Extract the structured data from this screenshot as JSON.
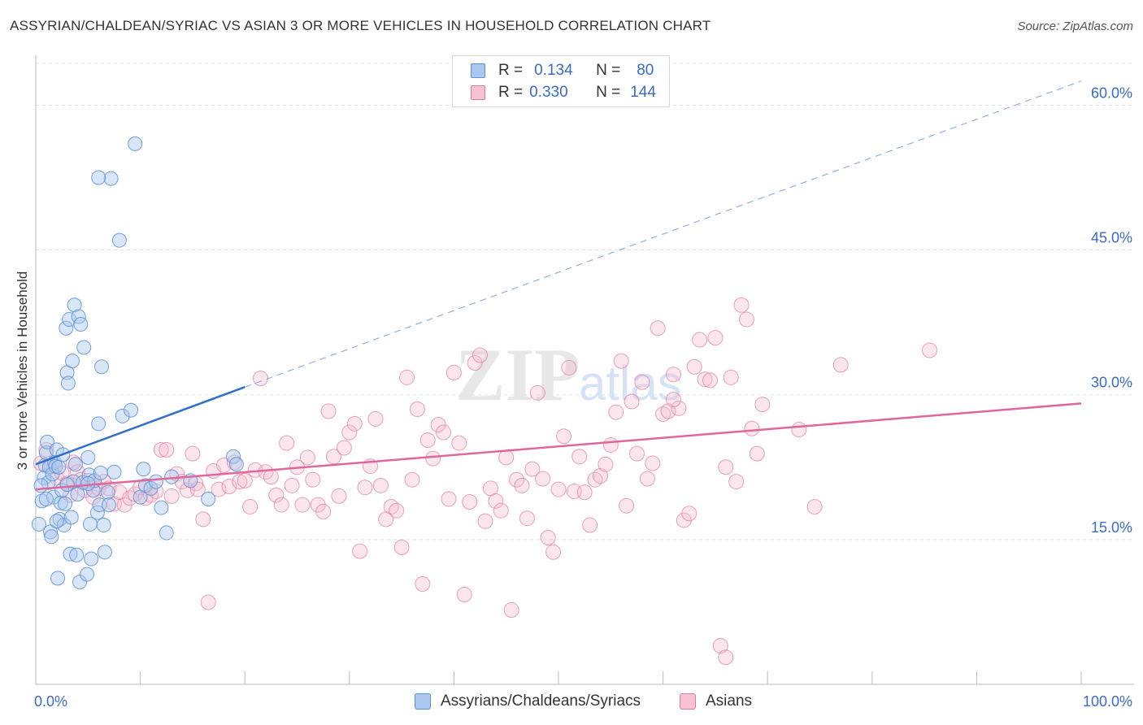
{
  "title": "ASSYRIAN/CHALDEAN/SYRIAC VS ASIAN 3 OR MORE VEHICLES IN HOUSEHOLD CORRELATION CHART",
  "source": "Source: ZipAtlas.com",
  "watermark": {
    "zip": "ZIP",
    "atlas": "atlas"
  },
  "legend": {
    "r_label": "R =",
    "n_label": "N =",
    "series1": {
      "r": "0.134",
      "n": "80"
    },
    "series2": {
      "r": "0.330",
      "n": "144"
    }
  },
  "colors": {
    "blue_fill": "#aac8ee",
    "blue_stroke": "#5b8fd6",
    "blue_line": "#3070c8",
    "pink_fill": "#f7b8cc",
    "pink_stroke": "#e07a9c",
    "pink_line": "#e0679a",
    "axis_label": "#3a6bc9",
    "grid": "#e2e2e2"
  },
  "chart_data": {
    "type": "scatter",
    "title": "ASSYRIAN/CHALDEAN/SYRIAC VS ASIAN 3 OR MORE VEHICLES IN HOUSEHOLD CORRELATION CHART",
    "xlabel": "",
    "ylabel": "3 or more Vehicles in Household",
    "xlim": [
      0,
      100
    ],
    "ylim": [
      0,
      65
    ],
    "x_tick_labels": [
      "0.0%",
      "100.0%"
    ],
    "y_ticks": [
      15,
      30,
      45,
      60
    ],
    "y_tick_labels": [
      "15.0%",
      "30.0%",
      "45.0%",
      "60.0%"
    ],
    "series": [
      {
        "name": "Assyrians/Chaldeans/Syriacs",
        "color": "#5b8fd6",
        "trend": {
          "x": [
            0,
            20
          ],
          "y": [
            22.8,
            30.8
          ],
          "dashed_extension_to": [
            100,
            62.5
          ]
        },
        "points": [
          [
            0.3,
            16.6
          ],
          [
            0.6,
            19.0
          ],
          [
            0.8,
            21.4
          ],
          [
            0.9,
            22.7
          ],
          [
            1.0,
            24.0
          ],
          [
            1.1,
            25.1
          ],
          [
            1.2,
            20.9
          ],
          [
            1.3,
            22.5
          ],
          [
            1.4,
            15.8
          ],
          [
            1.5,
            15.3
          ],
          [
            1.6,
            21.8
          ],
          [
            1.7,
            19.4
          ],
          [
            1.8,
            23.0
          ],
          [
            1.9,
            22.6
          ],
          [
            2.0,
            24.3
          ],
          [
            2.1,
            11.0
          ],
          [
            2.2,
            22.5
          ],
          [
            2.3,
            17.1
          ],
          [
            2.4,
            18.8
          ],
          [
            2.5,
            20.1
          ],
          [
            2.6,
            23.8
          ],
          [
            2.7,
            16.5
          ],
          [
            2.8,
            18.7
          ],
          [
            2.9,
            36.9
          ],
          [
            3.0,
            32.3
          ],
          [
            3.1,
            31.2
          ],
          [
            3.2,
            37.8
          ],
          [
            3.3,
            13.5
          ],
          [
            3.4,
            17.3
          ],
          [
            3.5,
            33.5
          ],
          [
            3.6,
            21.0
          ],
          [
            3.7,
            39.3
          ],
          [
            3.8,
            22.8
          ],
          [
            3.9,
            13.4
          ],
          [
            4.1,
            38.1
          ],
          [
            4.2,
            10.6
          ],
          [
            4.3,
            37.3
          ],
          [
            4.5,
            20.9
          ],
          [
            4.6,
            34.9
          ],
          [
            4.9,
            11.4
          ],
          [
            5.0,
            23.5
          ],
          [
            5.1,
            21.7
          ],
          [
            5.2,
            16.6
          ],
          [
            5.3,
            13.0
          ],
          [
            5.5,
            20.1
          ],
          [
            5.6,
            21.1
          ],
          [
            5.9,
            17.8
          ],
          [
            6.0,
            27.0
          ],
          [
            6.1,
            18.6
          ],
          [
            6.2,
            21.9
          ],
          [
            6.3,
            32.9
          ],
          [
            6.5,
            16.5
          ],
          [
            6.6,
            13.7
          ],
          [
            6.9,
            19.9
          ],
          [
            7.0,
            18.6
          ],
          [
            7.2,
            52.4
          ],
          [
            7.5,
            22.0
          ],
          [
            8.0,
            46.0
          ],
          [
            8.3,
            27.8
          ],
          [
            9.1,
            28.4
          ],
          [
            9.5,
            56.0
          ],
          [
            10.0,
            19.4
          ],
          [
            10.3,
            22.3
          ],
          [
            10.5,
            20.6
          ],
          [
            11.0,
            20.3
          ],
          [
            11.5,
            21.0
          ],
          [
            12.0,
            18.3
          ],
          [
            12.5,
            15.7
          ],
          [
            13.0,
            21.5
          ],
          [
            14.8,
            21.1
          ],
          [
            16.5,
            19.2
          ],
          [
            18.9,
            23.6
          ],
          [
            19.2,
            22.8
          ],
          [
            0.5,
            20.6
          ],
          [
            1.0,
            19.2
          ],
          [
            2.0,
            16.9
          ],
          [
            3.0,
            20.7
          ],
          [
            4.0,
            19.7
          ],
          [
            5.0,
            20.8
          ],
          [
            6.0,
            52.5
          ]
        ]
      },
      {
        "name": "Asians",
        "color": "#e07a9c",
        "trend": {
          "x": [
            0,
            100
          ],
          "y": [
            20.2,
            29.1
          ]
        },
        "points": [
          [
            0.5,
            22.9
          ],
          [
            1.0,
            24.3
          ],
          [
            1.5,
            22.6
          ],
          [
            2.0,
            21.4
          ],
          [
            2.5,
            21.9
          ],
          [
            3.0,
            20.8
          ],
          [
            3.3,
            19.6
          ],
          [
            3.6,
            23.0
          ],
          [
            4.0,
            22.0
          ],
          [
            4.3,
            21.2
          ],
          [
            4.7,
            20.1
          ],
          [
            5.0,
            21.1
          ],
          [
            5.5,
            19.4
          ],
          [
            6.0,
            20.3
          ],
          [
            6.5,
            21.0
          ],
          [
            7.0,
            20.3
          ],
          [
            7.5,
            18.7
          ],
          [
            8.0,
            19.9
          ],
          [
            8.5,
            18.6
          ],
          [
            9.0,
            19.3
          ],
          [
            9.5,
            19.7
          ],
          [
            10.0,
            20.4
          ],
          [
            10.5,
            19.3
          ],
          [
            11.0,
            19.6
          ],
          [
            11.5,
            20.0
          ],
          [
            12.0,
            24.3
          ],
          [
            12.5,
            24.3
          ],
          [
            13.0,
            19.5
          ],
          [
            13.5,
            21.8
          ],
          [
            14.0,
            21.0
          ],
          [
            14.5,
            20.1
          ],
          [
            15.0,
            23.9
          ],
          [
            15.3,
            20.8
          ],
          [
            15.5,
            20.2
          ],
          [
            16.0,
            17.1
          ],
          [
            16.5,
            8.5
          ],
          [
            17.0,
            22.1
          ],
          [
            17.5,
            20.2
          ],
          [
            18.0,
            22.7
          ],
          [
            18.5,
            20.5
          ],
          [
            19.0,
            23.0
          ],
          [
            19.5,
            21.0
          ],
          [
            20.0,
            21.1
          ],
          [
            20.5,
            18.4
          ],
          [
            21.0,
            22.2
          ],
          [
            21.5,
            31.7
          ],
          [
            22.0,
            22.0
          ],
          [
            22.5,
            21.5
          ],
          [
            23.0,
            19.6
          ],
          [
            23.5,
            18.6
          ],
          [
            24.0,
            25.0
          ],
          [
            24.5,
            20.6
          ],
          [
            25.0,
            22.5
          ],
          [
            25.5,
            18.6
          ],
          [
            26.0,
            23.5
          ],
          [
            26.5,
            21.2
          ],
          [
            27.0,
            18.6
          ],
          [
            27.5,
            17.9
          ],
          [
            28.0,
            28.3
          ],
          [
            28.5,
            23.6
          ],
          [
            29.0,
            19.5
          ],
          [
            29.5,
            24.5
          ],
          [
            30.0,
            26.1
          ],
          [
            30.5,
            27.0
          ],
          [
            31.0,
            13.8
          ],
          [
            31.5,
            20.4
          ],
          [
            32.0,
            22.6
          ],
          [
            32.5,
            27.5
          ],
          [
            33.0,
            20.6
          ],
          [
            33.5,
            17.1
          ],
          [
            34.0,
            18.4
          ],
          [
            34.5,
            18.0
          ],
          [
            35.0,
            14.2
          ],
          [
            35.5,
            31.8
          ],
          [
            36.0,
            21.2
          ],
          [
            36.5,
            28.5
          ],
          [
            37.0,
            10.4
          ],
          [
            37.5,
            25.3
          ],
          [
            38.0,
            23.4
          ],
          [
            38.5,
            26.9
          ],
          [
            39.0,
            26.1
          ],
          [
            39.5,
            19.2
          ],
          [
            40.0,
            32.3
          ],
          [
            40.5,
            25.0
          ],
          [
            41.0,
            9.3
          ],
          [
            41.5,
            18.9
          ],
          [
            42.0,
            33.3
          ],
          [
            42.5,
            34.1
          ],
          [
            43.0,
            16.9
          ],
          [
            43.5,
            20.3
          ],
          [
            44.0,
            19.0
          ],
          [
            44.5,
            18.0
          ],
          [
            45.0,
            23.5
          ],
          [
            45.5,
            7.7
          ],
          [
            46.0,
            21.2
          ],
          [
            46.5,
            20.6
          ],
          [
            47.0,
            17.2
          ],
          [
            47.5,
            22.3
          ],
          [
            48.0,
            30.2
          ],
          [
            48.5,
            21.3
          ],
          [
            49.0,
            15.2
          ],
          [
            49.5,
            13.7
          ],
          [
            50.0,
            20.2
          ],
          [
            50.5,
            25.7
          ],
          [
            51.0,
            32.8
          ],
          [
            51.5,
            20.0
          ],
          [
            52.0,
            23.6
          ],
          [
            52.5,
            19.9
          ],
          [
            53.0,
            16.5
          ],
          [
            53.5,
            21.2
          ],
          [
            54.0,
            21.6
          ],
          [
            54.5,
            22.8
          ],
          [
            55.0,
            24.8
          ],
          [
            55.5,
            28.2
          ],
          [
            56.0,
            33.5
          ],
          [
            56.5,
            18.5
          ],
          [
            57.0,
            29.3
          ],
          [
            57.5,
            23.9
          ],
          [
            58.0,
            31.3
          ],
          [
            58.5,
            21.3
          ],
          [
            59.0,
            22.9
          ],
          [
            59.5,
            36.9
          ],
          [
            60.0,
            28.0
          ],
          [
            60.5,
            28.3
          ],
          [
            61.0,
            32.1
          ],
          [
            61.5,
            28.6
          ],
          [
            62.0,
            17.0
          ],
          [
            62.5,
            17.7
          ],
          [
            63.0,
            32.9
          ],
          [
            63.5,
            35.7
          ],
          [
            64.0,
            31.6
          ],
          [
            64.5,
            31.5
          ],
          [
            65.0,
            35.9
          ],
          [
            65.5,
            4.0
          ],
          [
            66.0,
            2.8
          ],
          [
            66.5,
            31.8
          ],
          [
            67.0,
            21.0
          ],
          [
            67.5,
            39.3
          ],
          [
            68.0,
            37.8
          ],
          [
            68.5,
            26.5
          ],
          [
            69.0,
            23.9
          ],
          [
            69.5,
            29.0
          ],
          [
            73.0,
            26.4
          ],
          [
            74.5,
            18.4
          ],
          [
            77.0,
            33.1
          ],
          [
            85.5,
            34.6
          ],
          [
            61.0,
            29.5
          ],
          [
            66.0,
            22.5
          ]
        ]
      }
    ]
  },
  "bottom_legend": {
    "series1": "Assyrians/Chaldeans/Syriacs",
    "series2": "Asians"
  }
}
